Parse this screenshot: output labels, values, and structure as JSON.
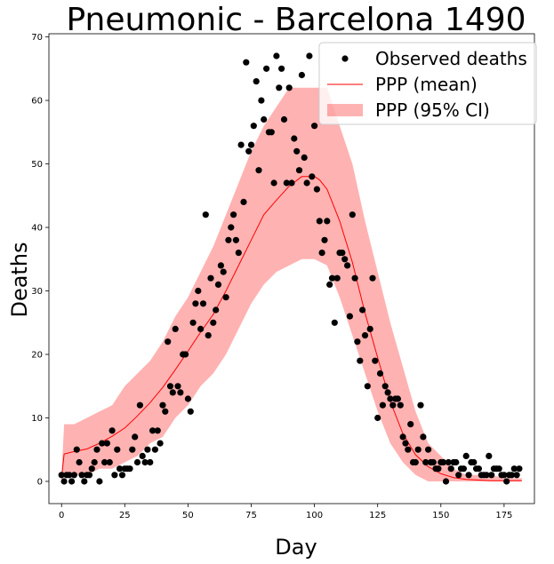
{
  "chart_data": {
    "type": "scatter",
    "title": "Pneumonic - Barcelona 1490",
    "xlabel": "Day",
    "ylabel": "Deaths",
    "xlim": [
      -5,
      187
    ],
    "ylim": [
      -3.5,
      70.5
    ],
    "xticks": [
      0,
      25,
      50,
      75,
      100,
      125,
      150,
      175
    ],
    "yticks": [
      0,
      10,
      20,
      30,
      40,
      50,
      60,
      70
    ],
    "grid": false,
    "legend_position": "top-right",
    "colors": {
      "observed": "#000000",
      "mean": "#ff0000",
      "ci": "#ff0000",
      "ci_opacity": 0.3
    },
    "legend": [
      {
        "label": "Observed deaths",
        "kind": "marker"
      },
      {
        "label": "PPP (mean)",
        "kind": "line"
      },
      {
        "label": "PPP (95% CI)",
        "kind": "band"
      }
    ],
    "series": [
      {
        "name": "Observed deaths",
        "kind": "scatter",
        "x": [
          0,
          1,
          2,
          3,
          4,
          5,
          6,
          7,
          8,
          9,
          10,
          11,
          12,
          13,
          14,
          15,
          16,
          17,
          18,
          19,
          20,
          21,
          22,
          23,
          24,
          25,
          26,
          27,
          28,
          29,
          30,
          31,
          32,
          33,
          34,
          35,
          36,
          37,
          38,
          39,
          40,
          41,
          42,
          43,
          44,
          45,
          46,
          47,
          48,
          49,
          50,
          51,
          52,
          53,
          54,
          55,
          56,
          57,
          58,
          59,
          60,
          61,
          62,
          63,
          64,
          65,
          66,
          67,
          68,
          69,
          70,
          71,
          72,
          73,
          74,
          75,
          76,
          77,
          78,
          79,
          80,
          81,
          82,
          83,
          84,
          85,
          86,
          87,
          88,
          89,
          90,
          91,
          92,
          93,
          94,
          95,
          96,
          97,
          98,
          99,
          100,
          101,
          102,
          103,
          104,
          105,
          106,
          107,
          108,
          109,
          110,
          111,
          112,
          113,
          114,
          115,
          116,
          117,
          118,
          119,
          120,
          121,
          122,
          123,
          124,
          125,
          126,
          127,
          128,
          129,
          130,
          131,
          132,
          133,
          134,
          135,
          136,
          137,
          138,
          139,
          140,
          141,
          142,
          143,
          144,
          145,
          146,
          147,
          148,
          149,
          150,
          151,
          152,
          153,
          154,
          155,
          156,
          157,
          158,
          159,
          160,
          161,
          162,
          163,
          164,
          165,
          166,
          167,
          168,
          169,
          170,
          171,
          172,
          173,
          174,
          175,
          176,
          177,
          178,
          179,
          180,
          181
        ],
        "y": [
          1,
          0,
          1,
          1,
          0,
          1,
          5,
          3,
          1,
          0,
          1,
          1,
          2,
          3,
          5,
          0,
          6,
          3,
          6,
          3,
          8,
          1,
          5,
          2,
          1,
          2,
          2,
          2,
          5,
          7,
          3,
          12,
          4,
          3,
          5,
          3,
          8,
          5,
          8,
          6,
          12,
          11,
          22,
          15,
          14,
          24,
          15,
          14,
          20,
          20,
          13,
          11,
          25,
          28,
          30,
          24,
          28,
          42,
          23,
          32,
          25,
          27,
          31,
          34,
          33,
          29,
          38,
          40,
          42,
          38,
          36,
          53,
          44,
          66,
          52,
          53,
          56,
          63,
          49,
          60,
          57,
          65,
          55,
          55,
          47,
          67,
          62,
          65,
          57,
          47,
          62,
          47,
          54,
          52,
          49,
          64,
          51,
          47,
          67,
          48,
          56,
          46,
          41,
          36,
          38,
          41,
          31,
          32,
          25,
          32,
          36,
          36,
          35,
          34,
          26,
          42,
          32,
          22,
          19,
          27,
          23,
          15,
          24,
          32,
          19,
          10,
          17,
          12,
          15,
          14,
          13,
          12,
          13,
          13,
          12,
          7,
          6,
          5,
          9,
          3,
          3,
          5,
          12,
          7,
          3,
          5,
          3,
          3,
          2,
          2,
          3,
          3,
          0,
          3,
          2,
          3,
          3,
          1,
          2,
          2,
          4,
          1,
          3,
          3,
          2,
          2,
          1,
          1,
          1,
          4,
          1,
          2,
          2,
          2,
          1,
          1,
          0,
          1,
          1,
          2,
          1,
          2
        ]
      },
      {
        "name": "PPP (mean)",
        "kind": "line",
        "x": [
          0,
          1,
          5,
          10,
          15,
          20,
          25,
          30,
          35,
          40,
          45,
          50,
          55,
          60,
          65,
          70,
          75,
          80,
          85,
          90,
          95,
          100,
          102,
          105,
          110,
          115,
          120,
          125,
          130,
          135,
          140,
          145,
          150,
          155,
          160,
          165,
          170,
          175,
          182
        ],
        "y": [
          0.5,
          4.3,
          4.7,
          5.1,
          6.0,
          7.1,
          8.4,
          10.3,
          12.4,
          14.8,
          17.6,
          20.5,
          23.5,
          26.3,
          30.0,
          34.0,
          38.0,
          42.0,
          44.3,
          46.5,
          48.0,
          48.0,
          47.5,
          46.0,
          41.0,
          34.5,
          26.5,
          19.5,
          12.6,
          7.5,
          4.2,
          2.3,
          1.2,
          0.6,
          0.3,
          0.2,
          0.1,
          0.1,
          0.1
        ]
      },
      {
        "name": "PPP (95% CI)",
        "kind": "band",
        "x": [
          0,
          1,
          5,
          10,
          15,
          20,
          25,
          30,
          35,
          40,
          45,
          50,
          55,
          60,
          65,
          70,
          75,
          80,
          85,
          90,
          95,
          100,
          105,
          110,
          115,
          120,
          125,
          130,
          135,
          140,
          145,
          150,
          155,
          160,
          165,
          170,
          175,
          182
        ],
        "lower": [
          0,
          1,
          1,
          1,
          2,
          2,
          3,
          4,
          6,
          7,
          10,
          12,
          15,
          17,
          20,
          24,
          28,
          31,
          33,
          34,
          35,
          35,
          34,
          29,
          23,
          17,
          11,
          6,
          3,
          1,
          0,
          0,
          0,
          0,
          0,
          0,
          0,
          0
        ],
        "upper": [
          1,
          9,
          9,
          10,
          11,
          12,
          15,
          17,
          19,
          22,
          26,
          29,
          33,
          37,
          42,
          47,
          52,
          56,
          59,
          62,
          62,
          62,
          62,
          56,
          50,
          41,
          33,
          25,
          18,
          11,
          6,
          4,
          2,
          1,
          1,
          1,
          0.5,
          0.5
        ]
      }
    ]
  }
}
